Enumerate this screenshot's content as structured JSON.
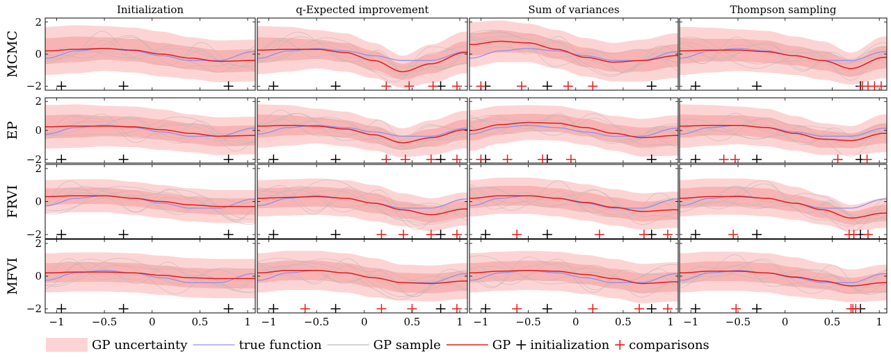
{
  "colors": {
    "band_outer": "#fdd4d4",
    "band_inner": "#f8b4b4",
    "true_function": "#8f8fef",
    "gp_sample": "#b8b8b8",
    "gp_mean": "#e31a1c",
    "initialization_marker": "#000000",
    "comparison_marker": "#e31a1c",
    "frame": "#000000"
  },
  "chart_data": {
    "type": "line",
    "layout": "4x4 grid of subplots (rows = inference method, columns = acquisition strategy)",
    "column_titles": [
      "Initialization",
      "q-Expected improvement",
      "Sum of variances",
      "Thompson sampling"
    ],
    "row_labels": [
      "MCMC",
      "EP",
      "FRVI",
      "MFVI"
    ],
    "x_ticks": [
      "−1",
      "−0.5",
      "0",
      "0.5",
      "1"
    ],
    "x_tick_values": [
      -1,
      -0.5,
      0,
      0.5,
      1
    ],
    "y_ticks": [
      "−2",
      "0",
      "2"
    ],
    "y_tick_values": [
      -2,
      0,
      2
    ],
    "xlim": [
      -1.12,
      1.08
    ],
    "ylim": [
      -2.25,
      2.25
    ],
    "legend_position": "bottom",
    "legend": [
      {
        "label": "GP uncertainty",
        "kind": "band"
      },
      {
        "label": "true function",
        "kind": "true"
      },
      {
        "label": "GP sample",
        "kind": "sample"
      },
      {
        "label": "GP",
        "kind": "mean"
      },
      {
        "label": "initialization",
        "kind": "init"
      },
      {
        "label": "comparisons",
        "kind": "comp"
      }
    ],
    "initialization_x": [
      -0.95,
      -0.3,
      0.8
    ],
    "true_function": {
      "x": [
        -1.1,
        -0.8,
        -0.5,
        -0.2,
        0.1,
        0.4,
        0.7,
        1.05
      ],
      "y": [
        -0.25,
        0.2,
        0.35,
        0.2,
        -0.1,
        -0.4,
        -0.4,
        0.15
      ]
    },
    "subplots": [
      {
        "row": "MCMC",
        "column": "Initialization",
        "mean": [
          0.2,
          0.3,
          0.35,
          0.25,
          0.0,
          -0.25,
          -0.45,
          -0.4
        ],
        "band_outer": [
          1.5,
          1.5,
          1.4,
          1.4,
          1.4,
          1.3,
          1.3,
          1.3
        ],
        "band_inner": [
          0.8,
          0.8,
          0.7,
          0.7,
          0.7,
          0.7,
          0.7,
          0.7
        ],
        "comparisons_x": []
      },
      {
        "row": "MCMC",
        "column": "q-Expected improvement",
        "mean": [
          0.25,
          0.3,
          0.3,
          0.1,
          -0.4,
          -1.1,
          -0.6,
          0.1
        ],
        "band_outer": [
          1.5,
          1.4,
          1.2,
          1.2,
          1.1,
          1.0,
          1.2,
          1.3
        ],
        "band_inner": [
          0.8,
          0.7,
          0.6,
          0.6,
          0.6,
          0.5,
          0.6,
          0.7
        ],
        "comparisons_x": [
          0.23,
          0.47,
          0.72,
          0.97
        ]
      },
      {
        "row": "MCMC",
        "column": "Sum of variances",
        "mean": [
          0.6,
          0.8,
          0.7,
          0.3,
          -0.2,
          -0.5,
          -0.4,
          -0.1
        ],
        "band_outer": [
          1.4,
          1.3,
          1.2,
          1.2,
          1.2,
          1.2,
          1.3,
          1.4
        ],
        "band_inner": [
          0.7,
          0.7,
          0.6,
          0.6,
          0.6,
          0.6,
          0.7,
          0.7
        ],
        "comparisons_x": [
          -1.0,
          -0.57,
          -0.08,
          0.18
        ]
      },
      {
        "row": "MCMC",
        "column": "Thompson sampling",
        "mean": [
          0.2,
          0.25,
          0.25,
          0.15,
          -0.1,
          -0.4,
          -0.9,
          -0.2
        ],
        "band_outer": [
          1.5,
          1.4,
          1.3,
          1.3,
          1.2,
          1.2,
          1.0,
          1.3
        ],
        "band_inner": [
          0.8,
          0.7,
          0.7,
          0.7,
          0.6,
          0.6,
          0.5,
          0.7
        ],
        "comparisons_x": [
          0.82,
          0.88,
          0.95,
          1.02
        ]
      },
      {
        "row": "EP",
        "column": "Initialization",
        "mean": [
          0.25,
          0.3,
          0.3,
          0.25,
          0.05,
          -0.2,
          -0.4,
          -0.35
        ],
        "band_outer": [
          1.5,
          1.5,
          1.4,
          1.4,
          1.4,
          1.3,
          1.3,
          1.3
        ],
        "band_inner": [
          0.8,
          0.8,
          0.7,
          0.7,
          0.7,
          0.7,
          0.7,
          0.7
        ],
        "comparisons_x": []
      },
      {
        "row": "EP",
        "column": "q-Expected improvement",
        "mean": [
          0.3,
          0.35,
          0.3,
          0.1,
          -0.3,
          -0.85,
          -0.5,
          0.05
        ],
        "band_outer": [
          1.5,
          1.4,
          1.2,
          1.2,
          1.1,
          1.0,
          1.2,
          1.3
        ],
        "band_inner": [
          0.8,
          0.7,
          0.6,
          0.6,
          0.6,
          0.5,
          0.6,
          0.7
        ],
        "comparisons_x": [
          0.23,
          0.43,
          0.7,
          0.97
        ]
      },
      {
        "row": "EP",
        "column": "Sum of variances",
        "mean": [
          0.0,
          0.4,
          0.55,
          0.5,
          0.2,
          -0.2,
          -0.5,
          -0.35
        ],
        "band_outer": [
          1.4,
          1.3,
          1.2,
          1.2,
          1.2,
          1.2,
          1.3,
          1.4
        ],
        "band_inner": [
          0.7,
          0.7,
          0.6,
          0.6,
          0.6,
          0.6,
          0.7,
          0.7
        ],
        "comparisons_x": [
          -1.0,
          -0.72,
          -0.35,
          -0.05
        ]
      },
      {
        "row": "EP",
        "column": "Thompson sampling",
        "mean": [
          0.3,
          0.35,
          0.35,
          0.2,
          -0.2,
          -0.6,
          -0.7,
          -0.2
        ],
        "band_outer": [
          1.5,
          1.4,
          1.3,
          1.3,
          1.2,
          1.1,
          1.0,
          1.3
        ],
        "band_inner": [
          0.8,
          0.7,
          0.7,
          0.7,
          0.6,
          0.6,
          0.5,
          0.7
        ],
        "comparisons_x": [
          -0.65,
          -0.53,
          0.56,
          0.87
        ]
      },
      {
        "row": "FRVI",
        "column": "Initialization",
        "mean": [
          0.3,
          0.35,
          0.35,
          0.2,
          0.0,
          -0.2,
          -0.3,
          -0.3
        ],
        "band_outer": [
          1.0,
          1.0,
          1.0,
          1.0,
          1.0,
          1.0,
          1.0,
          1.0
        ],
        "band_inner": [
          0.5,
          0.5,
          0.5,
          0.5,
          0.5,
          0.5,
          0.5,
          0.5
        ],
        "comparisons_x": []
      },
      {
        "row": "FRVI",
        "column": "q-Expected improvement",
        "mean": [
          0.2,
          0.25,
          0.3,
          0.2,
          -0.1,
          -0.5,
          -0.8,
          -0.45
        ],
        "band_outer": [
          1.1,
          1.1,
          1.1,
          1.1,
          1.1,
          1.0,
          1.0,
          1.0
        ],
        "band_inner": [
          0.6,
          0.6,
          0.6,
          0.6,
          0.6,
          0.5,
          0.5,
          0.5
        ],
        "comparisons_x": [
          0.18,
          0.41,
          0.7,
          0.97
        ]
      },
      {
        "row": "FRVI",
        "column": "Sum of variances",
        "mean": [
          0.2,
          0.35,
          0.35,
          0.2,
          -0.05,
          -0.35,
          -0.6,
          -0.5
        ],
        "band_outer": [
          1.1,
          1.1,
          1.1,
          1.1,
          1.1,
          1.1,
          1.1,
          1.1
        ],
        "band_inner": [
          0.6,
          0.6,
          0.6,
          0.6,
          0.6,
          0.6,
          0.6,
          0.6
        ],
        "comparisons_x": [
          -0.62,
          0.25,
          0.72,
          0.97
        ]
      },
      {
        "row": "FRVI",
        "column": "Thompson sampling",
        "mean": [
          0.2,
          0.3,
          0.3,
          0.2,
          -0.1,
          -0.5,
          -1.0,
          -0.7
        ],
        "band_outer": [
          1.1,
          1.1,
          1.1,
          1.1,
          1.0,
          0.9,
          0.8,
          0.9
        ],
        "band_inner": [
          0.6,
          0.6,
          0.6,
          0.6,
          0.5,
          0.5,
          0.4,
          0.5
        ],
        "comparisons_x": [
          -0.55,
          0.68,
          0.73,
          0.88
        ]
      },
      {
        "row": "MFVI",
        "column": "Initialization",
        "mean": [
          0.2,
          0.25,
          0.25,
          0.2,
          0.05,
          -0.1,
          -0.15,
          -0.15
        ],
        "band_outer": [
          1.2,
          1.2,
          1.2,
          1.2,
          1.2,
          1.2,
          1.2,
          1.2
        ],
        "band_inner": [
          0.6,
          0.6,
          0.6,
          0.6,
          0.6,
          0.6,
          0.6,
          0.6
        ],
        "comparisons_x": []
      },
      {
        "row": "MFVI",
        "column": "q-Expected improvement",
        "mean": [
          0.2,
          0.35,
          0.35,
          0.2,
          -0.1,
          -0.4,
          -0.45,
          -0.3
        ],
        "band_outer": [
          1.2,
          1.2,
          1.2,
          1.2,
          1.2,
          1.1,
          1.1,
          1.1
        ],
        "band_inner": [
          0.6,
          0.6,
          0.6,
          0.6,
          0.6,
          0.6,
          0.6,
          0.6
        ],
        "comparisons_x": [
          -0.62,
          0.18,
          0.5,
          0.97
        ]
      },
      {
        "row": "MFVI",
        "column": "Sum of variances",
        "mean": [
          0.2,
          0.3,
          0.35,
          0.3,
          0.1,
          -0.15,
          -0.45,
          -0.35
        ],
        "band_outer": [
          1.2,
          1.2,
          1.2,
          1.2,
          1.2,
          1.2,
          1.2,
          1.2
        ],
        "band_inner": [
          0.6,
          0.6,
          0.6,
          0.6,
          0.6,
          0.6,
          0.6,
          0.6
        ],
        "comparisons_x": [
          -0.62,
          0.18,
          0.67,
          0.97
        ]
      },
      {
        "row": "MFVI",
        "column": "Thompson sampling",
        "mean": [
          0.2,
          0.3,
          0.3,
          0.2,
          -0.05,
          -0.3,
          -0.6,
          -0.4
        ],
        "band_outer": [
          1.2,
          1.2,
          1.2,
          1.2,
          1.2,
          1.1,
          1.0,
          1.1
        ],
        "band_inner": [
          0.6,
          0.6,
          0.6,
          0.6,
          0.6,
          0.5,
          0.5,
          0.6
        ],
        "comparisons_x": [
          -0.52,
          0.7,
          0.72,
          0.75
        ]
      }
    ]
  }
}
